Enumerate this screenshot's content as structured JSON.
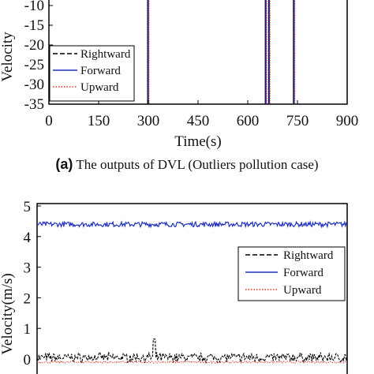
{
  "caption": {
    "tag": "(a)",
    "text": "The outputs of DVL (Outliers pollution case)"
  },
  "chart_data": [
    {
      "type": "line",
      "xlabel": "Time(s)",
      "ylabel": "Velocity",
      "xlim": [
        0,
        900
      ],
      "ylim_visible": [
        -35,
        -10
      ],
      "xticks": [
        "0",
        "150",
        "300",
        "450",
        "600",
        "750",
        "900"
      ],
      "yticks": [
        "-10",
        "-15",
        "-20",
        "-25",
        "-30",
        "-35"
      ],
      "legend": {
        "placement": "lower-left",
        "entries": [
          "Rightward",
          "Forward",
          "Upward"
        ]
      },
      "series": [
        {
          "name": "Rightward",
          "color": "#000000",
          "style": "dashed"
        },
        {
          "name": "Forward",
          "color": "#1f2fbf",
          "style": "solid"
        },
        {
          "name": "Upward",
          "color": "#e0301e",
          "style": "dotted"
        }
      ],
      "outlier_spikes_x": [
        300,
        655,
        665,
        740
      ],
      "outlier_spike_bottom": -35
    },
    {
      "type": "line",
      "xlabel": "",
      "ylabel": "Velocity(m/s)",
      "xlim": [
        0,
        900
      ],
      "ylim_visible": [
        0,
        5
      ],
      "yticks": [
        "5",
        "4",
        "3",
        "2",
        "1",
        "0"
      ],
      "legend": {
        "placement": "upper-right",
        "entries": [
          "Rightward",
          "Forward",
          "Upward"
        ]
      },
      "series": [
        {
          "name": "Rightward",
          "color": "#000000",
          "style": "dashed",
          "approx_mean": 0.05,
          "approx_noise": 0.12,
          "peak": {
            "x": 340,
            "y": 0.65
          }
        },
        {
          "name": "Forward",
          "color": "#1f2fbf",
          "style": "solid",
          "approx_mean": 4.4,
          "approx_noise": 0.08
        },
        {
          "name": "Upward",
          "color": "#e0301e",
          "style": "dotted",
          "approx_mean": -0.1,
          "approx_noise": 0.03
        }
      ]
    }
  ]
}
